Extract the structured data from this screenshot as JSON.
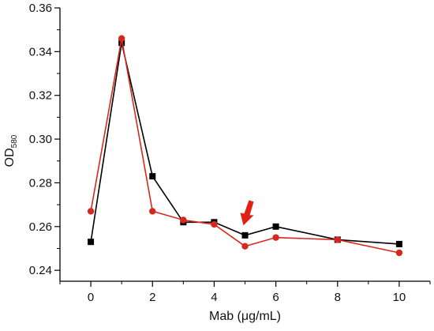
{
  "chart_data": {
    "type": "line",
    "xlabel": "Mab (μg/mL)",
    "ylabel": "OD",
    "ylabel_subscript": "580",
    "xlim": [
      -1,
      11
    ],
    "ylim": [
      0.235,
      0.36
    ],
    "x_ticks": [
      0,
      2,
      4,
      6,
      8,
      10
    ],
    "y_ticks": [
      0.24,
      0.26,
      0.28,
      0.3,
      0.32,
      0.34,
      0.36
    ],
    "x_tick_labels": [
      "0",
      "2",
      "4",
      "6",
      "8",
      "10"
    ],
    "y_tick_labels": [
      "0.24",
      "0.26",
      "0.28",
      "0.30",
      "0.32",
      "0.34",
      "0.36"
    ],
    "grid": false,
    "legend": "none",
    "annotation": {
      "type": "arrow",
      "color": "#e02010",
      "points_to_x": 5
    },
    "series": [
      {
        "marker": "square",
        "color": "#000000",
        "x": [
          0,
          1,
          2,
          3,
          4,
          5,
          6,
          8,
          10
        ],
        "y": [
          0.253,
          0.344,
          0.283,
          0.262,
          0.262,
          0.256,
          0.26,
          0.254,
          0.252
        ]
      },
      {
        "marker": "circle",
        "color": "#d42a1e",
        "x": [
          0,
          1,
          2,
          3,
          4,
          5,
          6,
          8,
          10
        ],
        "y": [
          0.267,
          0.346,
          0.267,
          0.263,
          0.261,
          0.251,
          0.255,
          0.254,
          0.248
        ]
      }
    ]
  }
}
